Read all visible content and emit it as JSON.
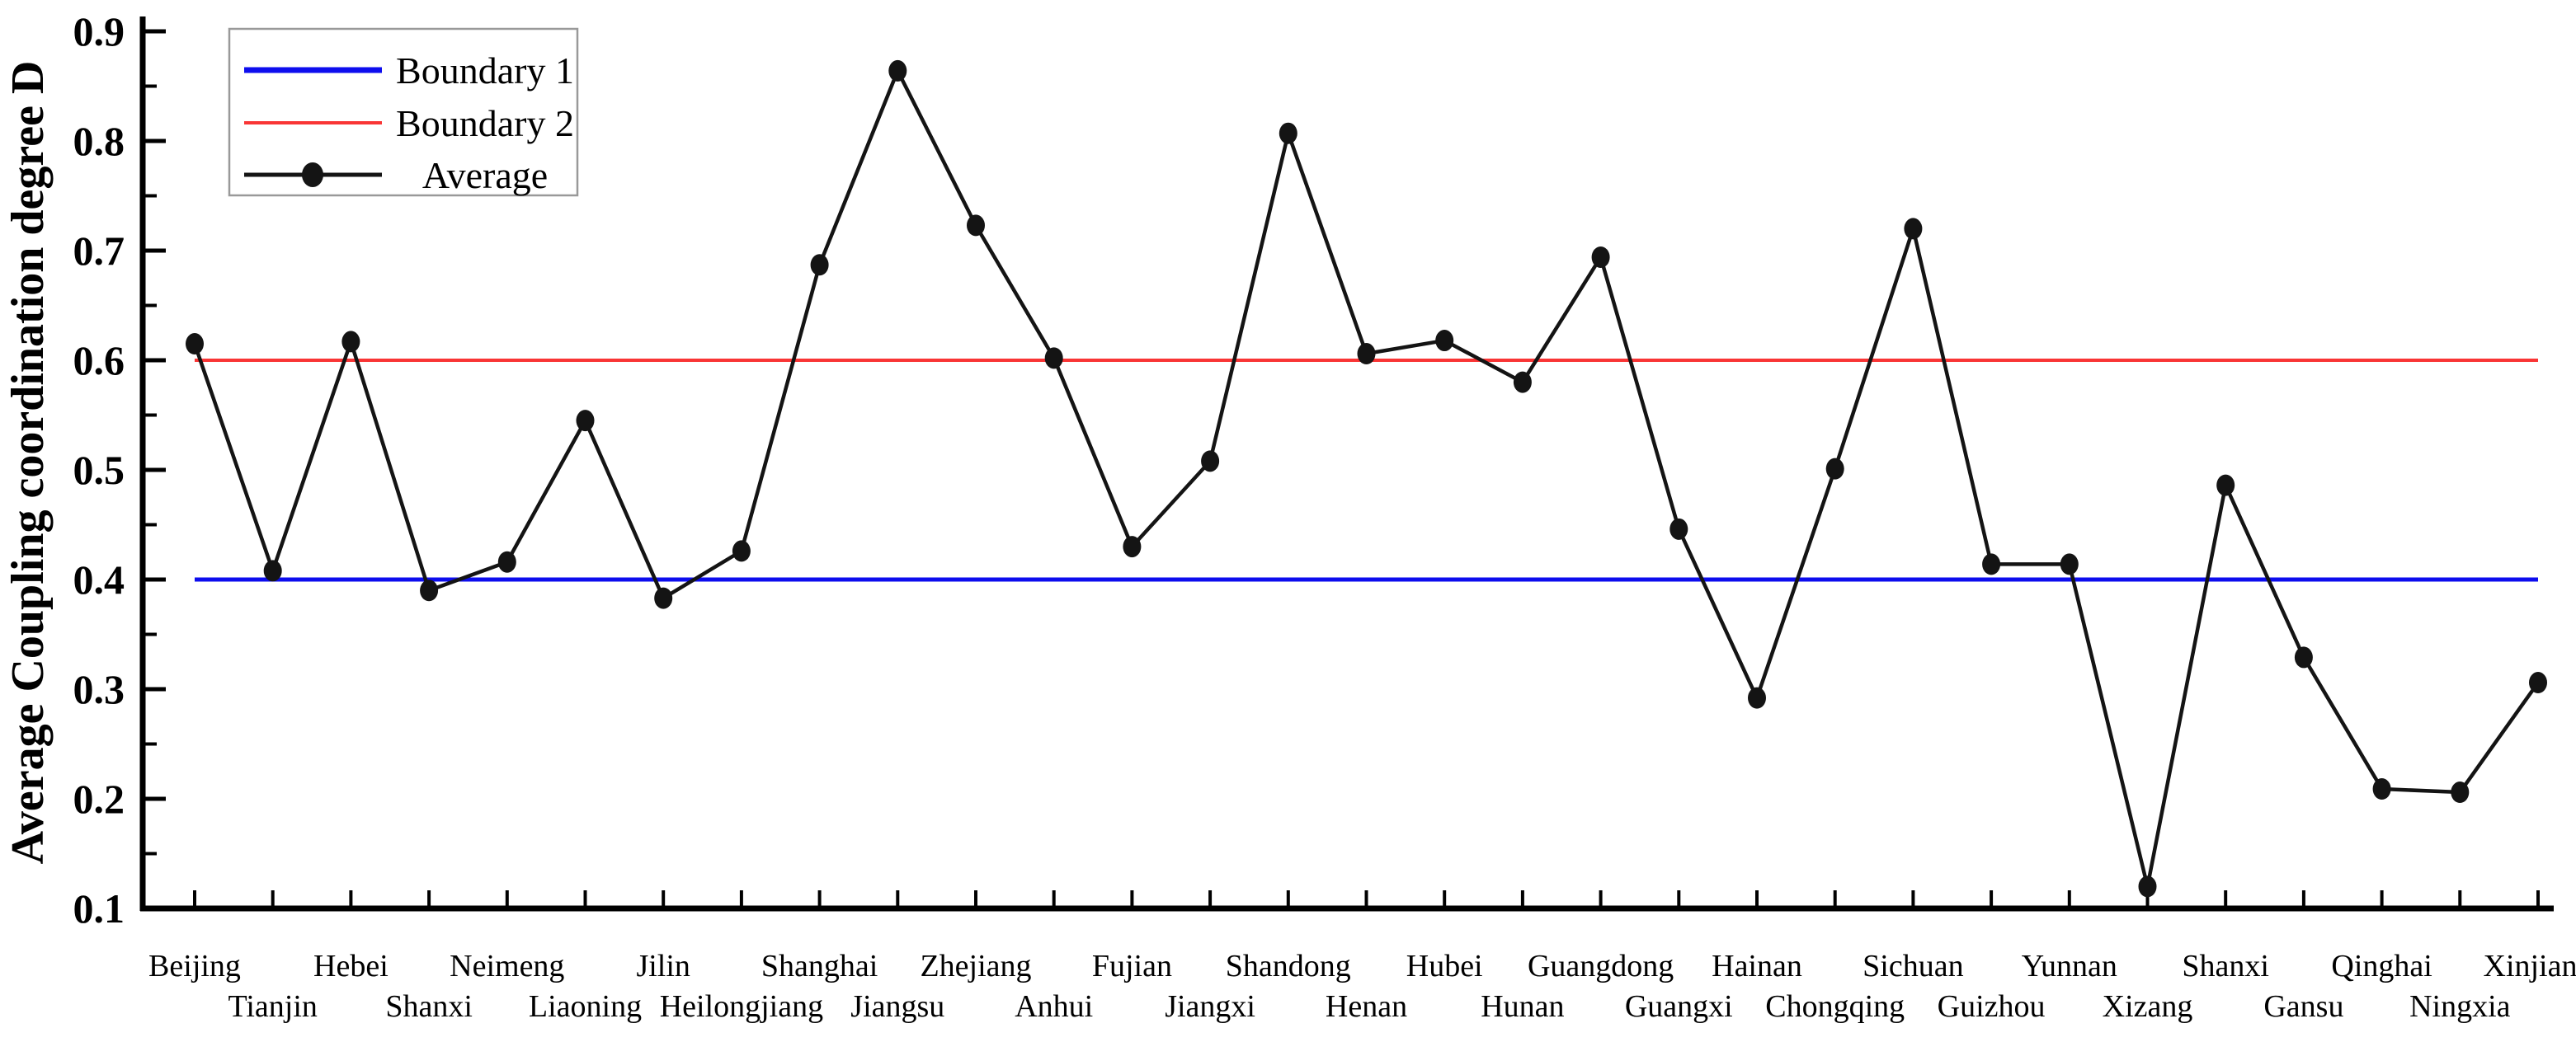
{
  "figure": {
    "background": "#ffffff",
    "y_axis_title": "Average Coupling coordination degree D"
  },
  "chart_data": {
    "type": "line",
    "title": "",
    "xlabel": "",
    "ylabel": "Average Coupling coordination degree D",
    "ylim": [
      0.1,
      0.9
    ],
    "y_ticks": [
      0.1,
      0.2,
      0.3,
      0.4,
      0.5,
      0.6,
      0.7,
      0.8,
      0.9
    ],
    "y_tick_labels": [
      "0.1",
      "0.2",
      "0.3",
      "0.4",
      "0.5",
      "0.6",
      "0.7",
      "0.8",
      "0.9"
    ],
    "grid": false,
    "legend_position": "top-left",
    "legend_entries": [
      "Boundary 1",
      "Boundary 2",
      "Average"
    ],
    "categories": [
      "Beijing",
      "Tianjin",
      "Hebei",
      "Shanxi",
      "Neimeng",
      "Liaoning",
      "Jilin",
      "Heilongjiang",
      "Shanghai",
      "Jiangsu",
      "Zhejiang",
      "Anhui",
      "Fujian",
      "Jiangxi",
      "Shandong",
      "Henan",
      "Hubei",
      "Hunan",
      "Guangdong",
      "Guangxi",
      "Hainan",
      "Chongqing",
      "Sichuan",
      "Guizhou",
      "Yunnan",
      "Xizang",
      "Shanxi",
      "Gansu",
      "Qinghai",
      "Ningxia",
      "Xinjiang"
    ],
    "series": [
      {
        "name": "Boundary 1",
        "type": "hline",
        "value": 0.4,
        "color": "#0d0dee",
        "width": 5
      },
      {
        "name": "Boundary 2",
        "type": "hline",
        "value": 0.6,
        "color": "#f93535",
        "width": 4
      },
      {
        "name": "Average",
        "type": "line",
        "color": "#141414",
        "width": 4.5,
        "marker": "circle",
        "values": [
          0.615,
          0.408,
          0.617,
          0.39,
          0.416,
          0.545,
          0.383,
          0.426,
          0.687,
          0.864,
          0.723,
          0.602,
          0.43,
          0.508,
          0.807,
          0.606,
          0.618,
          0.58,
          0.694,
          0.446,
          0.292,
          0.501,
          0.72,
          0.414,
          0.414,
          0.12,
          0.486,
          0.329,
          0.209,
          0.206,
          0.306
        ]
      }
    ]
  }
}
